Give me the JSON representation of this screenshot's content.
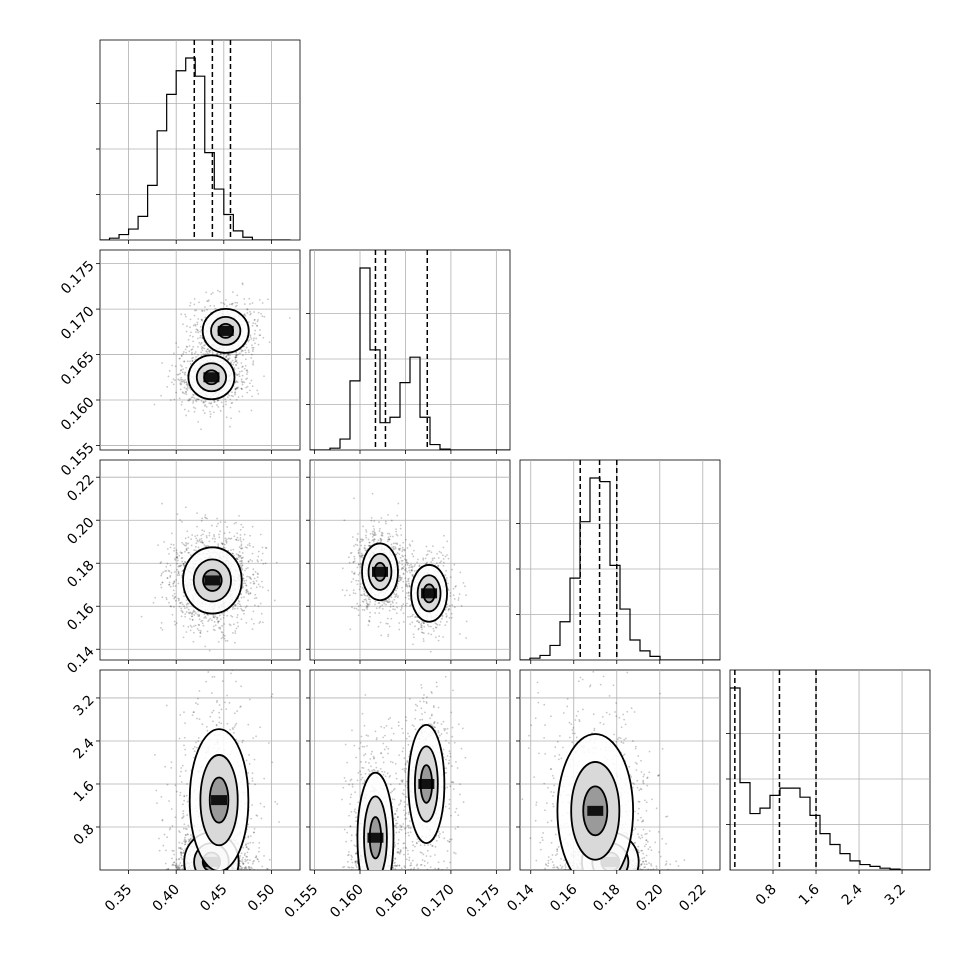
{
  "chart_data": {
    "type": "corner",
    "parameters": [
      {
        "range": [
          0.32,
          0.53
        ],
        "ticks": [
          0.35,
          0.4,
          0.45,
          0.5
        ],
        "tick_labels": [
          "0.35",
          "0.40",
          "0.45",
          "0.50"
        ]
      },
      {
        "range": [
          0.1545,
          0.1765
        ],
        "ticks": [
          0.155,
          0.16,
          0.165,
          0.17,
          0.175
        ],
        "tick_labels": [
          "0.155",
          "0.160",
          "0.165",
          "0.170",
          "0.175"
        ]
      },
      {
        "range": [
          0.135,
          0.228
        ],
        "ticks": [
          0.14,
          0.16,
          0.18,
          0.2,
          0.22
        ],
        "tick_labels": [
          "0.14",
          "0.16",
          "0.18",
          "0.20",
          "0.22"
        ]
      },
      {
        "range": [
          0.0,
          3.72
        ],
        "ticks": [
          0.8,
          1.6,
          2.4,
          3.2
        ],
        "tick_labels": [
          "0.8",
          "1.6",
          "2.4",
          "3.2"
        ]
      }
    ],
    "quantiles": [
      [
        0.419,
        0.438,
        0.457
      ],
      [
        0.1617,
        0.1628,
        0.1674
      ],
      [
        0.163,
        0.172,
        0.18
      ],
      [
        0.09,
        0.92,
        1.6
      ]
    ],
    "histograms": [
      {
        "edges_start": 0.32,
        "bin_width": 0.01,
        "counts": [
          0,
          0.01,
          0.03,
          0.06,
          0.13,
          0.3,
          0.6,
          0.8,
          0.93,
          1.0,
          0.9,
          0.48,
          0.28,
          0.14,
          0.05,
          0.015,
          0.0,
          0,
          0,
          0
        ]
      },
      {
        "edges_start": 0.1545,
        "bin_width": 0.0011,
        "counts": [
          0,
          0,
          0.01,
          0.06,
          0.38,
          1.0,
          0.55,
          0.15,
          0.18,
          0.37,
          0.51,
          0.18,
          0.03,
          0.005,
          0,
          0,
          0,
          0,
          0,
          0
        ]
      },
      {
        "edges_start": 0.135,
        "bin_width": 0.00465,
        "counts": [
          0,
          0.01,
          0.025,
          0.08,
          0.21,
          0.45,
          0.76,
          1.0,
          0.98,
          0.52,
          0.28,
          0.11,
          0.05,
          0.02,
          0.0,
          0,
          0,
          0,
          0,
          0
        ]
      },
      {
        "edges_start": 0.0,
        "bin_width": 0.186,
        "counts": [
          1.0,
          0.48,
          0.31,
          0.34,
          0.41,
          0.45,
          0.45,
          0.4,
          0.3,
          0.2,
          0.14,
          0.09,
          0.05,
          0.03,
          0.02,
          0.01,
          0.005,
          0,
          0,
          0
        ]
      }
    ],
    "joint_modes": [
      {
        "pair": [
          0,
          1
        ],
        "modes": [
          {
            "cx": 0.437,
            "cy": 0.1625,
            "sx": 0.011,
            "sy": 0.0011,
            "w": 0.6
          },
          {
            "cx": 0.452,
            "cy": 0.1676,
            "sx": 0.011,
            "sy": 0.0011,
            "w": 0.4
          }
        ]
      },
      {
        "pair": [
          0,
          2
        ],
        "modes": [
          {
            "cx": 0.438,
            "cy": 0.172,
            "sx": 0.014,
            "sy": 0.007,
            "w": 1.0
          }
        ]
      },
      {
        "pair": [
          1,
          2
        ],
        "modes": [
          {
            "cx": 0.1622,
            "cy": 0.176,
            "sx": 0.0009,
            "sy": 0.006,
            "w": 0.6
          },
          {
            "cx": 0.1676,
            "cy": 0.166,
            "sx": 0.0009,
            "sy": 0.006,
            "w": 0.4
          }
        ]
      },
      {
        "pair": [
          0,
          3
        ],
        "modes": [
          {
            "cx": 0.437,
            "cy": 0.15,
            "sx": 0.013,
            "sy": 0.25,
            "w": 0.55
          },
          {
            "cx": 0.445,
            "cy": 1.3,
            "sx": 0.014,
            "sy": 0.6,
            "w": 0.45
          }
        ]
      },
      {
        "pair": [
          1,
          3
        ],
        "modes": [
          {
            "cx": 0.1617,
            "cy": 0.6,
            "sx": 0.0009,
            "sy": 0.55,
            "w": 0.55
          },
          {
            "cx": 0.1673,
            "cy": 1.6,
            "sx": 0.0009,
            "sy": 0.5,
            "w": 0.45
          }
        ]
      },
      {
        "pair": [
          2,
          3
        ],
        "modes": [
          {
            "cx": 0.177,
            "cy": 0.15,
            "sx": 0.006,
            "sy": 0.25,
            "w": 0.5
          },
          {
            "cx": 0.17,
            "cy": 1.1,
            "sx": 0.008,
            "sy": 0.65,
            "w": 0.5
          }
        ]
      }
    ]
  }
}
